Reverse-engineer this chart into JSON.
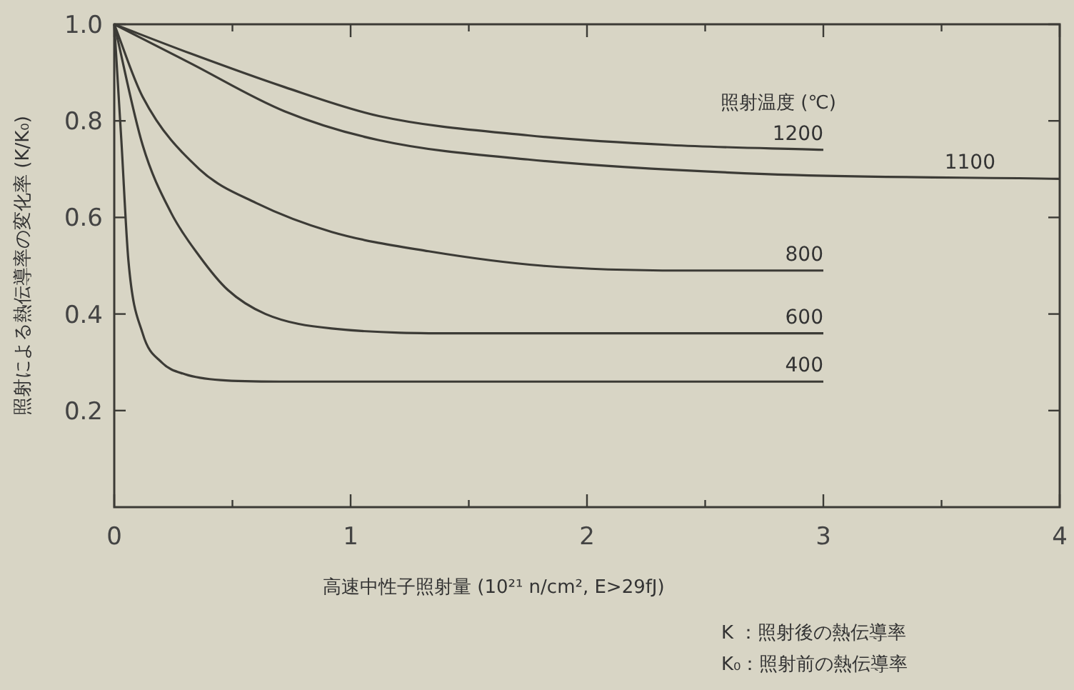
{
  "chart_data": {
    "type": "line",
    "xlabel": "高速中性子照射量 (10²¹ n/cm², E>29fJ)",
    "ylabel": "照射による熱伝導率の変化率 (K/K₀)",
    "legend_title": "照射温度 (℃)",
    "xlim": [
      0,
      4
    ],
    "ylim": [
      0,
      1
    ],
    "xticks": [
      0,
      {
        "value": 0.5,
        "label": null
      },
      1,
      {
        "value": 1.5,
        "label": null
      },
      2,
      {
        "value": 2.5,
        "label": null
      },
      3,
      {
        "value": 3.5,
        "label": null
      },
      4
    ],
    "yticks": [
      0.2,
      0.4,
      0.6,
      0.8,
      {
        "value": 1,
        "label": "1.0"
      }
    ],
    "grid": false,
    "marker": "none",
    "line_style": "solid",
    "series": [
      {
        "name": "1200",
        "color": "#3c3b36",
        "x": [
          0,
          0.32,
          0.72,
          1.12,
          1.75,
          2.35,
          3
        ],
        "values": [
          1,
          0.94,
          0.87,
          0.81,
          0.77,
          0.75,
          0.74
        ]
      },
      {
        "name": "1100",
        "color": "#3c3b36",
        "x": [
          0,
          0.32,
          0.72,
          1.12,
          1.75,
          2.75,
          4
        ],
        "values": [
          1,
          0.92,
          0.82,
          0.76,
          0.72,
          0.69,
          0.68
        ]
      },
      {
        "name": "800",
        "color": "#3c3b36",
        "x": [
          0,
          0.12,
          0.36,
          0.6,
          0.92,
          1.33,
          1.81,
          2.4,
          3
        ],
        "values": [
          1,
          0.85,
          0.7,
          0.63,
          0.57,
          0.53,
          0.5,
          0.49,
          0.49
        ]
      },
      {
        "name": "600",
        "color": "#3c3b36",
        "x": [
          0,
          0.12,
          0.24,
          0.36,
          0.48,
          0.64,
          0.92,
          1.5,
          3
        ],
        "values": [
          1,
          0.75,
          0.61,
          0.52,
          0.45,
          0.4,
          0.37,
          0.36,
          0.36
        ]
      },
      {
        "name": "400",
        "color": "#3c3b36",
        "x": [
          0,
          0.03,
          0.06,
          0.12,
          0.2,
          0.3,
          0.45,
          0.7,
          3
        ],
        "values": [
          1,
          0.76,
          0.51,
          0.36,
          0.3,
          0.275,
          0.263,
          0.26,
          0.26
        ]
      }
    ],
    "annotations": [
      "K ：照射後の熱伝導率",
      "K₀：照射前の熱伝導率"
    ]
  }
}
